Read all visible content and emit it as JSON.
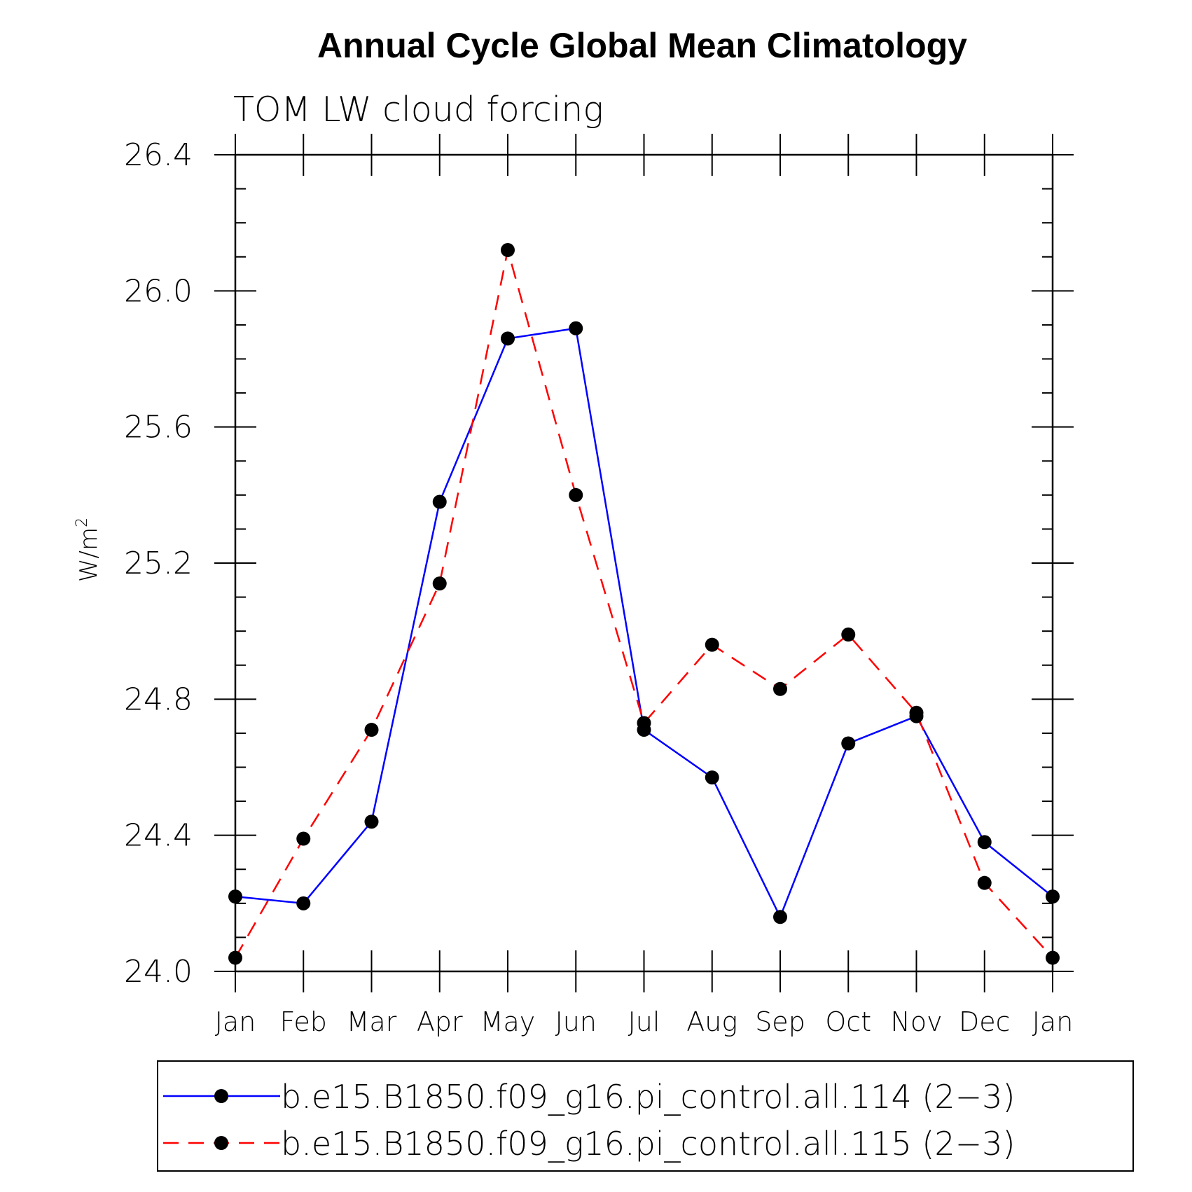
{
  "chart_data": {
    "type": "line",
    "title": "Annual Cycle Global Mean Climatology",
    "subtitle": "TOM LW cloud forcing",
    "xlabel": "",
    "ylabel_base": "W/m",
    "ylabel_sup": "2",
    "categories": [
      "Jan",
      "Feb",
      "Mar",
      "Apr",
      "May",
      "Jun",
      "Jul",
      "Aug",
      "Sep",
      "Oct",
      "Nov",
      "Dec",
      "Jan"
    ],
    "ylim": [
      24.0,
      26.4
    ],
    "yticks": [
      "24.0",
      "24.4",
      "24.8",
      "25.2",
      "25.6",
      "26.0",
      "26.4"
    ],
    "series": [
      {
        "name": "b.e15.B1850.f09_g16.pi_control.all.114 (2−3)",
        "color": "#0000ff",
        "dash": "solid",
        "values": [
          24.22,
          24.2,
          24.44,
          25.38,
          25.86,
          25.89,
          24.71,
          24.57,
          24.16,
          24.67,
          24.75,
          24.38,
          24.22
        ]
      },
      {
        "name": "b.e15.B1850.f09_g16.pi_control.all.115 (2−3)",
        "color": "#ff0000",
        "dash": "dashed",
        "values": [
          24.04,
          24.39,
          24.71,
          25.14,
          26.12,
          25.4,
          24.73,
          24.96,
          24.83,
          24.99,
          24.76,
          24.26,
          24.04
        ]
      }
    ],
    "legend_position": "bottom"
  }
}
